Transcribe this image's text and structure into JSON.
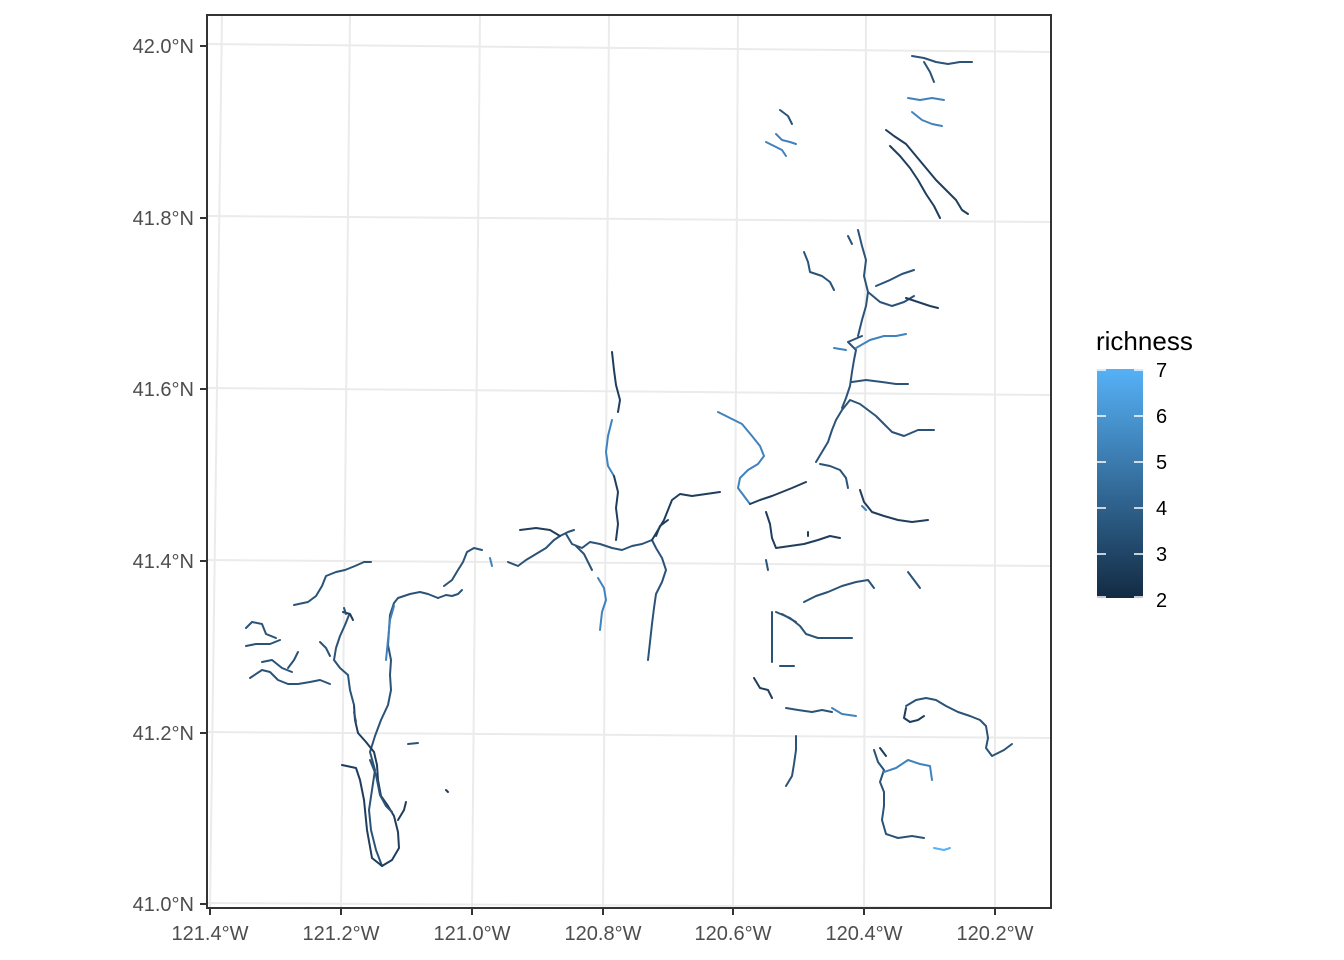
{
  "map": {
    "legend": {
      "title": "richness",
      "min": 2,
      "max": 7,
      "ticks": [
        "7",
        "6",
        "5",
        "4",
        "3",
        "2"
      ],
      "color_low": "#132b43",
      "color_high": "#56b1f7"
    },
    "y_ticks": [
      "42.0°N",
      "41.8°N",
      "41.6°N",
      "41.4°N",
      "41.2°N",
      "41.0°N"
    ],
    "x_ticks": [
      "121.4°W",
      "121.2°W",
      "121.0°W",
      "120.8°W",
      "120.6°W",
      "120.4°W",
      "120.2°W"
    ],
    "colors": {
      "panel_border": "#333333",
      "grid": "#ebebeb",
      "background": "#ffffff"
    }
  }
}
